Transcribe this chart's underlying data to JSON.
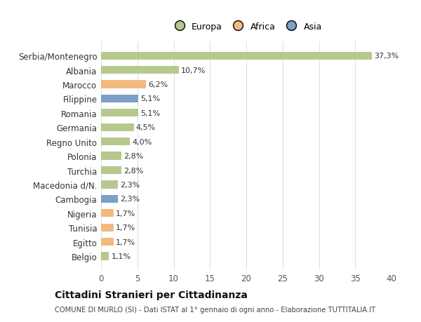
{
  "categories": [
    "Serbia/Montenegro",
    "Albania",
    "Marocco",
    "Filippine",
    "Romania",
    "Germania",
    "Regno Unito",
    "Polonia",
    "Turchia",
    "Macedonia d/N.",
    "Cambogia",
    "Nigeria",
    "Tunisia",
    "Egitto",
    "Belgio"
  ],
  "values": [
    37.3,
    10.7,
    6.2,
    5.1,
    5.1,
    4.5,
    4.0,
    2.8,
    2.8,
    2.3,
    2.3,
    1.7,
    1.7,
    1.7,
    1.1
  ],
  "labels": [
    "37,3%",
    "10,7%",
    "6,2%",
    "5,1%",
    "5,1%",
    "4,5%",
    "4,0%",
    "2,8%",
    "2,8%",
    "2,3%",
    "2,3%",
    "1,7%",
    "1,7%",
    "1,7%",
    "1,1%"
  ],
  "continents": [
    "Europa",
    "Europa",
    "Africa",
    "Asia",
    "Europa",
    "Europa",
    "Europa",
    "Europa",
    "Europa",
    "Europa",
    "Asia",
    "Africa",
    "Africa",
    "Africa",
    "Europa"
  ],
  "colors": {
    "Europa": "#b5c98e",
    "Africa": "#f4b97f",
    "Asia": "#7b9fc7"
  },
  "legend_labels": [
    "Europa",
    "Africa",
    "Asia"
  ],
  "legend_colors": [
    "#b5c98e",
    "#f4b97f",
    "#7b9fc7"
  ],
  "xlim": [
    0,
    40
  ],
  "xticks": [
    0,
    5,
    10,
    15,
    20,
    25,
    30,
    35,
    40
  ],
  "title": "Cittadini Stranieri per Cittadinanza",
  "subtitle": "COMUNE DI MURLO (SI) - Dati ISTAT al 1° gennaio di ogni anno - Elaborazione TUTTITALIA.IT",
  "bg_color": "#ffffff",
  "plot_bg_color": "#f9f9f9",
  "grid_color": "#e0e0e0",
  "bar_height": 0.55
}
